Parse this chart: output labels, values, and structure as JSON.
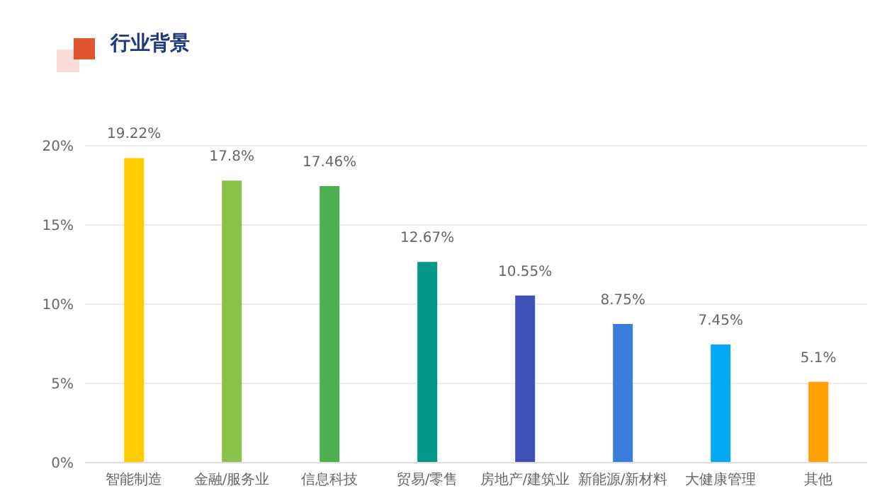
{
  "chart_data": {
    "type": "bar",
    "title": "行业背景",
    "categories": [
      "智能制造",
      "金融/服务业",
      "信息科技",
      "贸易/零售",
      "房地产/建筑业",
      "新能源/新材料",
      "大健康管理",
      "其他"
    ],
    "values": [
      19.22,
      17.8,
      17.46,
      12.67,
      10.55,
      8.75,
      7.45,
      5.1
    ],
    "value_labels": [
      "19.22%",
      "17.8%",
      "17.46%",
      "12.67%",
      "10.55%",
      "8.75%",
      "7.45%",
      "5.1%"
    ],
    "colors": [
      "#ffcc00",
      "#8bc34a",
      "#4caf50",
      "#009688",
      "#3f51b5",
      "#3b7ddd",
      "#03a9f4",
      "#ff9f00"
    ],
    "ylim": [
      0,
      20
    ],
    "yticks": [
      {
        "value": 0,
        "label": "0%"
      },
      {
        "value": 5,
        "label": "5%"
      },
      {
        "value": 10,
        "label": "10%"
      },
      {
        "value": 15,
        "label": "15%"
      },
      {
        "value": 20,
        "label": "20%"
      }
    ],
    "grid": "y"
  }
}
